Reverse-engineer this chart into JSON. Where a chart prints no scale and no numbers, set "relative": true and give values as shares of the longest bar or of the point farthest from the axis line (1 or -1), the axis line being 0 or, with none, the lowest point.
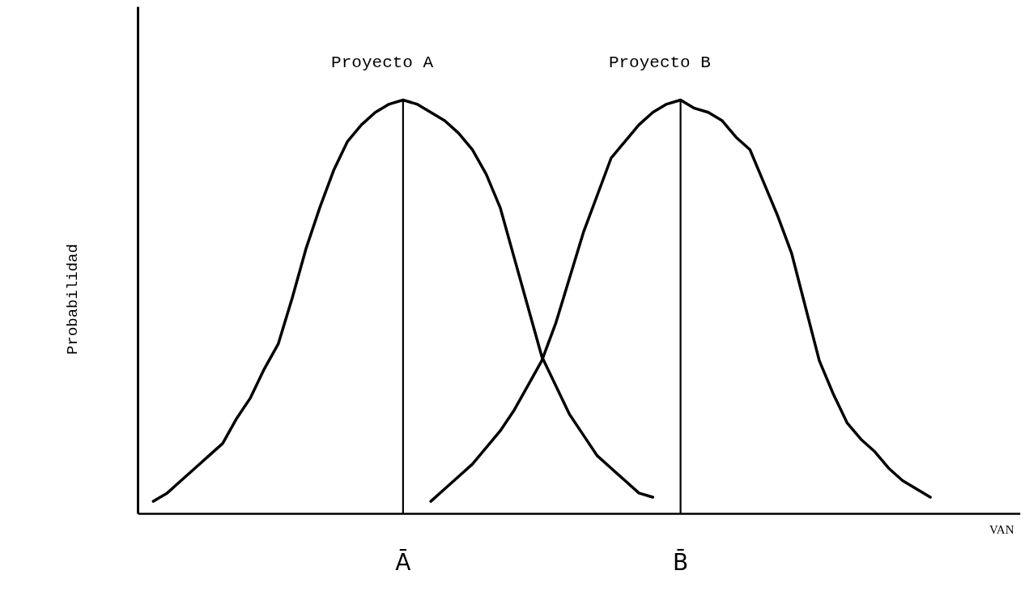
{
  "chart_data": {
    "type": "line",
    "xlabel": "VAN",
    "ylabel": "Probabilidad",
    "relative": true,
    "categories": [
      null,
      null,
      null,
      null,
      null,
      null,
      null,
      null,
      null,
      null,
      null,
      null,
      null,
      null,
      null,
      null,
      null,
      null,
      "Ā",
      null,
      null,
      null,
      null,
      null,
      null,
      null,
      null,
      null,
      null,
      null,
      null,
      null,
      null,
      null,
      null,
      null,
      null,
      null,
      "B̄",
      null,
      null,
      null,
      null,
      null,
      null,
      null,
      null,
      null,
      null,
      null,
      null,
      null,
      null,
      null,
      null,
      null,
      null,
      null,
      null,
      null,
      null,
      null,
      null
    ],
    "series": [
      {
        "name": "Proyecto A",
        "color": "#000000",
        "values": [
          0.03,
          0.05,
          0.08,
          0.11,
          0.14,
          0.17,
          0.23,
          0.28,
          0.35,
          0.41,
          0.52,
          0.64,
          0.74,
          0.83,
          0.9,
          0.94,
          0.97,
          0.99,
          1.0,
          0.99,
          0.97,
          0.95,
          0.92,
          0.88,
          0.82,
          0.74,
          0.62,
          0.5,
          0.38,
          0.31,
          0.24,
          0.19,
          0.14,
          0.11,
          0.08,
          0.05,
          0.04,
          null,
          null,
          null,
          null,
          null,
          null,
          null,
          null,
          null,
          null,
          null,
          null,
          null,
          null,
          null,
          null,
          null,
          null,
          null,
          null,
          null,
          null,
          null,
          null,
          null,
          null
        ]
      },
      {
        "name": "Proyecto B",
        "color": "#000000",
        "values": [
          null,
          null,
          null,
          null,
          null,
          null,
          null,
          null,
          null,
          null,
          null,
          null,
          null,
          null,
          null,
          null,
          null,
          null,
          null,
          null,
          0.03,
          0.06,
          0.09,
          0.12,
          0.16,
          0.2,
          0.25,
          0.31,
          0.37,
          0.46,
          0.57,
          0.68,
          0.77,
          0.86,
          0.9,
          0.94,
          0.97,
          0.99,
          1.0,
          0.98,
          0.97,
          0.95,
          0.91,
          0.88,
          0.8,
          0.72,
          0.63,
          0.5,
          0.37,
          0.29,
          0.22,
          0.18,
          0.15,
          0.11,
          0.08,
          0.06,
          0.04,
          null,
          null,
          null,
          null,
          null,
          null
        ]
      }
    ],
    "ref_lines": [
      {
        "axis": "x",
        "value": "Ā"
      },
      {
        "axis": "x",
        "value": "B̄"
      }
    ]
  }
}
